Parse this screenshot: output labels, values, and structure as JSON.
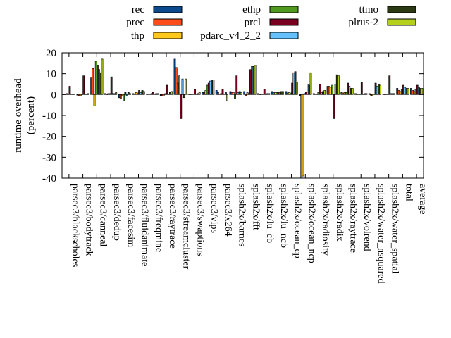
{
  "chart_data": {
    "type": "bar",
    "ylabel": "runtime overhead (percent)",
    "ylabel_lines": [
      "runtime overhead",
      "(percent)"
    ],
    "ylim": [
      -40,
      20
    ],
    "yticks": [
      -40,
      -30,
      -20,
      -10,
      0,
      10,
      20
    ],
    "legend_position": "top",
    "grid": false,
    "categories": [
      "parsec3/blackscholes",
      "parsec3/bodytrack",
      "parsec3/canneal",
      "parsec3/dedup",
      "parsec3/facesim",
      "parsec3/fluidanimate",
      "parsec3/freqmine",
      "parsec3/raytrace",
      "parsec3/streamcluster",
      "parsec3/swaptions",
      "parsec3/vips",
      "parsec3/x264",
      "splash2x/barnes",
      "splash2x/fft",
      "splash2x/lu_cb",
      "splash2x/lu_ncb",
      "splash2x/ocean_cp",
      "splash2x/ocean_ncp",
      "splash2x/radiosity",
      "splash2x/radix",
      "splash2x/raytrace",
      "splash2x/volrend",
      "splash2x/water_nsquared",
      "splash2x/water_spatial",
      "total",
      "average"
    ],
    "series": [
      {
        "name": "rec",
        "color": "#0b4a8c",
        "values": [
          0.3,
          -0.3,
          8.0,
          0.5,
          -1.5,
          0.5,
          0.3,
          -0.5,
          17.0,
          0.3,
          1.0,
          2.0,
          1.5,
          1.5,
          0.5,
          1.5,
          1.5,
          -0.5,
          0.5,
          4.0,
          1.0,
          0.5,
          0.5,
          0.3,
          3.0,
          3.0
        ]
      },
      {
        "name": "prec",
        "color": "#ff4d1a",
        "values": [
          0.3,
          -0.5,
          12.5,
          0.2,
          -2.0,
          0.3,
          0.3,
          -0.5,
          13.0,
          0.2,
          1.0,
          1.0,
          1.0,
          -0.5,
          0.2,
          1.0,
          0.8,
          -40.0,
          0.3,
          4.0,
          0.8,
          0.3,
          -0.3,
          0.2,
          2.0,
          2.0
        ]
      },
      {
        "name": "thp",
        "color": "#ffc81a",
        "values": [
          0.5,
          -0.5,
          -5.5,
          0.5,
          -0.5,
          1.0,
          0.3,
          -0.3,
          5.5,
          0.3,
          2.0,
          0.3,
          1.0,
          1.0,
          0.3,
          1.0,
          1.0,
          -39.0,
          0.3,
          3.5,
          1.0,
          0.3,
          -0.5,
          0.3,
          1.5,
          1.5
        ]
      },
      {
        "name": "ethp",
        "color": "#4f9a1f",
        "values": [
          0.3,
          0.3,
          16.0,
          0.5,
          -3.0,
          0.8,
          0.5,
          0.5,
          9.0,
          0.3,
          4.5,
          0.5,
          -2.0,
          0.5,
          0.3,
          1.0,
          0.8,
          0.5,
          1.0,
          4.5,
          1.0,
          0.3,
          0.3,
          0.3,
          2.5,
          2.5
        ]
      },
      {
        "name": "prcl",
        "color": "#7a001f",
        "values": [
          4.0,
          9.0,
          14.0,
          8.5,
          1.0,
          2.0,
          1.0,
          4.5,
          -11.5,
          2.5,
          5.5,
          2.5,
          9.0,
          12.0,
          2.5,
          1.0,
          5.5,
          1.0,
          5.0,
          -11.5,
          5.5,
          6.0,
          5.5,
          9.0,
          4.5,
          4.5
        ]
      },
      {
        "name": "pdarc_v4_2_2",
        "color": "#66c2ff",
        "values": [
          0.3,
          0.3,
          12.0,
          0.5,
          -0.5,
          1.0,
          0.3,
          0.3,
          7.5,
          0.3,
          6.5,
          0.3,
          1.0,
          13.5,
          0.3,
          1.0,
          10.5,
          5.0,
          1.0,
          5.0,
          4.0,
          0.3,
          4.0,
          0.5,
          3.5,
          3.5
        ]
      },
      {
        "name": "ttmo",
        "color": "#2b3a12",
        "values": [
          0.3,
          0.3,
          10.5,
          0.5,
          1.0,
          2.0,
          0.5,
          1.0,
          -1.5,
          0.5,
          7.0,
          1.0,
          1.5,
          13.5,
          0.5,
          1.5,
          11.0,
          4.5,
          1.5,
          9.5,
          3.0,
          0.5,
          5.0,
          0.5,
          3.0,
          3.0
        ]
      },
      {
        "name": "plrus-2",
        "color": "#b5d01a",
        "values": [
          0.3,
          0.5,
          17.0,
          1.0,
          0.5,
          1.5,
          0.5,
          1.5,
          7.5,
          1.0,
          7.0,
          -3.0,
          1.0,
          14.0,
          0.5,
          1.5,
          6.0,
          10.5,
          2.0,
          9.0,
          3.0,
          0.5,
          4.5,
          0.5,
          3.0,
          3.0
        ]
      }
    ]
  }
}
